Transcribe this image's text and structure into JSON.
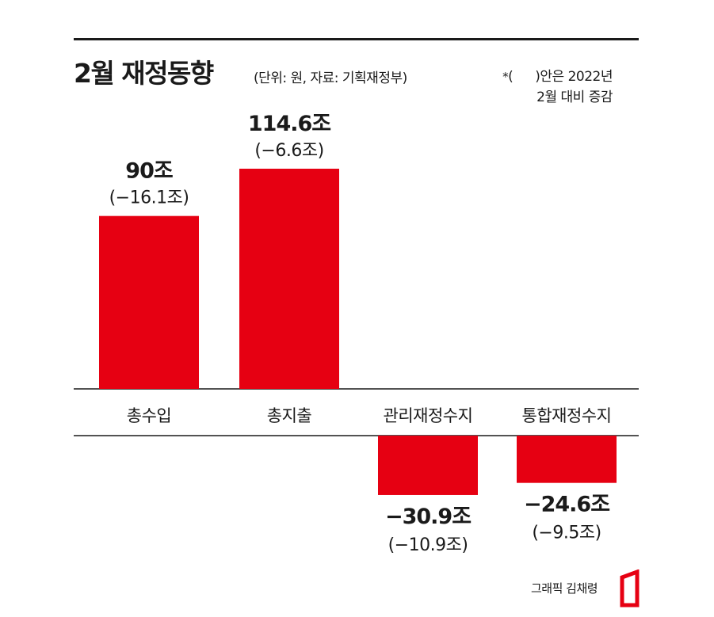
{
  "header": {
    "title": "2월 재정동향",
    "subtitle": "(단위: 원, 자료: 기획재정부)",
    "note_star": "*",
    "note_line1_open": "(",
    "note_line1_rest": ")안은 2022년",
    "note_line2": "2월 대비 증감"
  },
  "credit": "그래픽 김채령",
  "colors": {
    "bar": "#e60012",
    "text": "#1a1a1a",
    "rule": "#1a1a1a"
  },
  "chart_data": {
    "type": "bar",
    "categories": [
      "총수입",
      "총지출",
      "관리재정수지",
      "통합재정수지"
    ],
    "values": [
      90,
      114.6,
      -30.9,
      -24.6
    ],
    "value_labels": [
      "90조",
      "114.6조",
      "−30.9조",
      "−24.6조"
    ],
    "change_labels": [
      "(−16.1조)",
      "(−6.6조)",
      "(−10.9조)",
      "(−9.5조)"
    ],
    "changes": [
      -16.1,
      -6.6,
      -10.9,
      -9.5
    ]
  }
}
